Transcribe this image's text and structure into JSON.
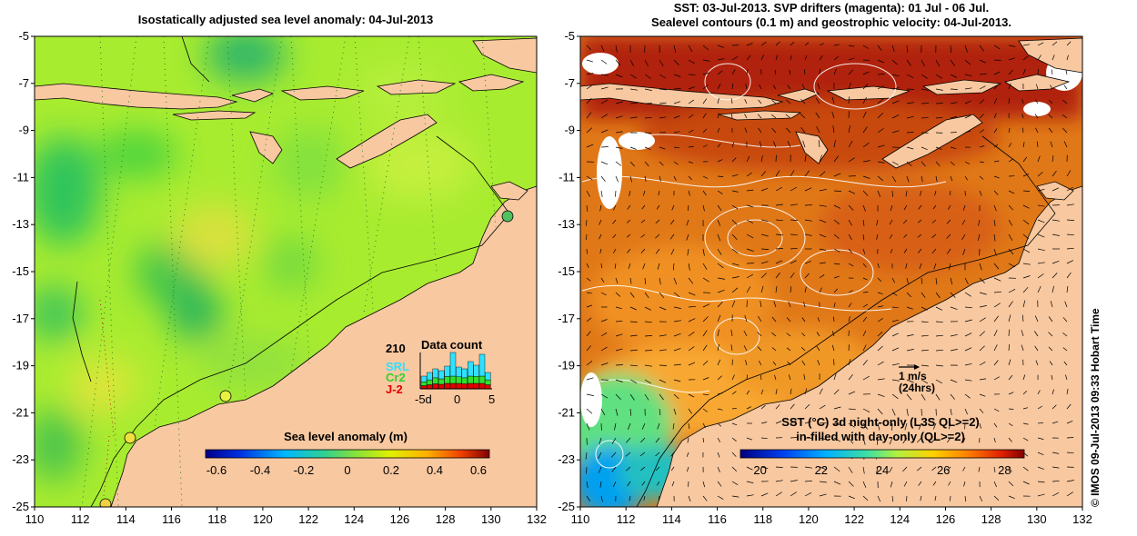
{
  "left_panel": {
    "title": "Isostatically adjusted sea level anomaly: 04-Jul-2013",
    "colorbar": {
      "label": "Sea level anomaly (m)",
      "ticks": [
        "-0.6",
        "-0.4",
        "-0.2",
        "0",
        "0.2",
        "0.4",
        "0.6"
      ]
    },
    "data_count": {
      "title": "Data count",
      "max_label": "210",
      "series": [
        "SRL",
        "Cr2",
        "J-2"
      ],
      "x_ticks": [
        "-5d",
        "0",
        "5"
      ],
      "colors": {
        "SRL": "#30e0ff",
        "Cr2": "#30e030",
        "J-2": "#e00000"
      }
    }
  },
  "right_panel": {
    "title_line1": "SST: 03-Jul-2013. SVP drifters (magenta): 01 Jul - 06 Jul.",
    "title_line2": "Sealevel contours (0.1 m) and geostrophic velocity: 04-Jul-2013.",
    "scale_arrow": {
      "label": "1 m/s",
      "sublabel": "(24hrs)"
    },
    "colorbar": {
      "label_line1": "SST (°C)  3d night-only (L3S QL>=2)",
      "label_line2": "in-filled with day-only (QL>=2)",
      "ticks": [
        "20",
        "22",
        "24",
        "26",
        "28"
      ]
    }
  },
  "axes": {
    "x_ticks": [
      "110",
      "112",
      "114",
      "116",
      "118",
      "120",
      "122",
      "124",
      "126",
      "128",
      "130",
      "132"
    ],
    "y_ticks": [
      "-5",
      "-7",
      "-9",
      "-11",
      "-13",
      "-15",
      "-17",
      "-19",
      "-21",
      "-23",
      "-25"
    ]
  },
  "credit": "© IMOS 09-Jul-2013 09:33 Hobart Time",
  "colors": {
    "land": "#f8c8a0",
    "sla_base": "#a8ec30",
    "sst_base": "#e07818"
  }
}
